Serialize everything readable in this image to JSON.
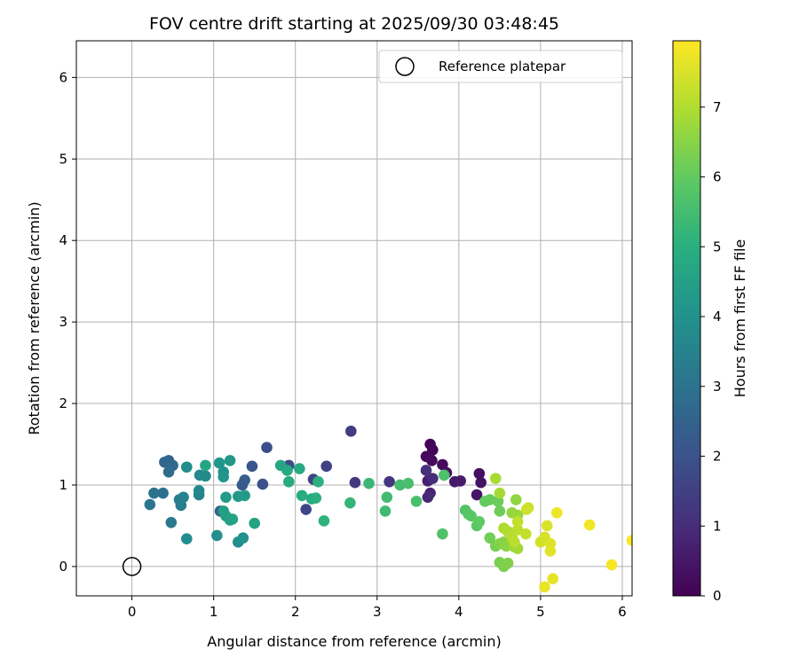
{
  "chart_data": {
    "type": "scatter",
    "title": "FOV centre drift starting at 2025/09/30 03:48:45",
    "xlabel": "Angular distance from reference (arcmin)",
    "ylabel": "Rotation from reference (arcmin)",
    "xlim": [
      -0.68,
      6.12
    ],
    "ylim": [
      -0.36,
      6.45
    ],
    "xticks": [
      0,
      1,
      2,
      3,
      4,
      5,
      6
    ],
    "yticks": [
      0,
      1,
      2,
      3,
      4,
      5,
      6
    ],
    "grid": true,
    "legend": {
      "position": "top-right",
      "entries": [
        "Reference platepar"
      ]
    },
    "reference_point": {
      "x": 0,
      "y": 0,
      "label": "Reference platepar"
    },
    "colorbar": {
      "label": "Hours from first FF file",
      "min": 0,
      "max": 7.95,
      "ticks": [
        0,
        1,
        2,
        3,
        4,
        5,
        6,
        7
      ],
      "colormap": "viridis"
    },
    "points": [
      {
        "x": 3.65,
        "y": 1.5,
        "c": 0.05
      },
      {
        "x": 3.68,
        "y": 1.43,
        "c": 0.1
      },
      {
        "x": 3.6,
        "y": 1.35,
        "c": 0.15
      },
      {
        "x": 3.67,
        "y": 1.3,
        "c": 0.2
      },
      {
        "x": 3.8,
        "y": 1.25,
        "c": 0.25
      },
      {
        "x": 3.85,
        "y": 1.15,
        "c": 0.3
      },
      {
        "x": 4.25,
        "y": 1.14,
        "c": 0.35
      },
      {
        "x": 4.27,
        "y": 1.03,
        "c": 0.4
      },
      {
        "x": 4.22,
        "y": 0.88,
        "c": 0.45
      },
      {
        "x": 3.95,
        "y": 1.04,
        "c": 0.55
      },
      {
        "x": 4.02,
        "y": 1.05,
        "c": 0.6
      },
      {
        "x": 3.62,
        "y": 1.05,
        "c": 0.7
      },
      {
        "x": 3.65,
        "y": 0.9,
        "c": 0.8
      },
      {
        "x": 3.62,
        "y": 0.85,
        "c": 0.9
      },
      {
        "x": 3.68,
        "y": 1.08,
        "c": 1.0
      },
      {
        "x": 3.6,
        "y": 1.18,
        "c": 1.1
      },
      {
        "x": 3.15,
        "y": 1.04,
        "c": 1.2
      },
      {
        "x": 2.73,
        "y": 1.03,
        "c": 1.3
      },
      {
        "x": 2.68,
        "y": 1.66,
        "c": 1.4
      },
      {
        "x": 2.38,
        "y": 1.23,
        "c": 1.5
      },
      {
        "x": 2.22,
        "y": 1.07,
        "c": 1.6
      },
      {
        "x": 2.13,
        "y": 0.7,
        "c": 1.7
      },
      {
        "x": 1.92,
        "y": 1.24,
        "c": 1.8
      },
      {
        "x": 1.65,
        "y": 1.46,
        "c": 1.9
      },
      {
        "x": 1.6,
        "y": 1.01,
        "c": 2.0
      },
      {
        "x": 1.47,
        "y": 1.23,
        "c": 2.1
      },
      {
        "x": 1.35,
        "y": 1.0,
        "c": 2.2
      },
      {
        "x": 1.38,
        "y": 1.06,
        "c": 2.3
      },
      {
        "x": 1.08,
        "y": 0.68,
        "c": 2.4
      },
      {
        "x": 0.45,
        "y": 1.3,
        "c": 2.5
      },
      {
        "x": 0.4,
        "y": 1.28,
        "c": 2.6
      },
      {
        "x": 0.5,
        "y": 1.24,
        "c": 2.7
      },
      {
        "x": 0.45,
        "y": 1.16,
        "c": 2.8
      },
      {
        "x": 0.38,
        "y": 0.9,
        "c": 2.9
      },
      {
        "x": 0.27,
        "y": 0.9,
        "c": 3.0
      },
      {
        "x": 0.22,
        "y": 0.76,
        "c": 3.1
      },
      {
        "x": 0.48,
        "y": 0.54,
        "c": 3.2
      },
      {
        "x": 0.6,
        "y": 0.75,
        "c": 3.3
      },
      {
        "x": 0.58,
        "y": 0.82,
        "c": 3.4
      },
      {
        "x": 0.63,
        "y": 0.85,
        "c": 3.5
      },
      {
        "x": 0.82,
        "y": 0.88,
        "c": 3.6
      },
      {
        "x": 0.82,
        "y": 0.93,
        "c": 3.65
      },
      {
        "x": 0.83,
        "y": 1.12,
        "c": 3.7
      },
      {
        "x": 0.9,
        "y": 1.11,
        "c": 3.75
      },
      {
        "x": 0.67,
        "y": 1.22,
        "c": 3.8
      },
      {
        "x": 0.67,
        "y": 0.34,
        "c": 3.85
      },
      {
        "x": 1.04,
        "y": 0.38,
        "c": 3.9
      },
      {
        "x": 1.3,
        "y": 0.3,
        "c": 3.95
      },
      {
        "x": 1.36,
        "y": 0.35,
        "c": 4.0
      },
      {
        "x": 1.12,
        "y": 1.16,
        "c": 4.05
      },
      {
        "x": 1.12,
        "y": 1.1,
        "c": 4.1
      },
      {
        "x": 1.07,
        "y": 1.27,
        "c": 4.15
      },
      {
        "x": 1.2,
        "y": 1.3,
        "c": 4.2
      },
      {
        "x": 1.3,
        "y": 0.86,
        "c": 4.25
      },
      {
        "x": 1.38,
        "y": 0.87,
        "c": 4.3
      },
      {
        "x": 1.15,
        "y": 0.85,
        "c": 4.35
      },
      {
        "x": 1.12,
        "y": 0.68,
        "c": 4.4
      },
      {
        "x": 1.15,
        "y": 0.62,
        "c": 4.45
      },
      {
        "x": 1.2,
        "y": 0.57,
        "c": 4.5
      },
      {
        "x": 1.23,
        "y": 0.58,
        "c": 4.55
      },
      {
        "x": 1.5,
        "y": 0.53,
        "c": 4.6
      },
      {
        "x": 0.9,
        "y": 1.24,
        "c": 4.65
      },
      {
        "x": 1.82,
        "y": 1.24,
        "c": 4.7
      },
      {
        "x": 1.9,
        "y": 1.18,
        "c": 4.75
      },
      {
        "x": 2.05,
        "y": 1.2,
        "c": 4.8
      },
      {
        "x": 1.92,
        "y": 1.04,
        "c": 4.85
      },
      {
        "x": 2.08,
        "y": 0.87,
        "c": 4.9
      },
      {
        "x": 2.2,
        "y": 0.83,
        "c": 4.95
      },
      {
        "x": 2.25,
        "y": 0.84,
        "c": 5.0
      },
      {
        "x": 2.28,
        "y": 1.04,
        "c": 5.05
      },
      {
        "x": 2.35,
        "y": 0.56,
        "c": 5.1
      },
      {
        "x": 2.67,
        "y": 0.78,
        "c": 5.2
      },
      {
        "x": 2.9,
        "y": 1.02,
        "c": 5.3
      },
      {
        "x": 3.1,
        "y": 0.68,
        "c": 5.4
      },
      {
        "x": 3.12,
        "y": 0.85,
        "c": 5.45
      },
      {
        "x": 3.28,
        "y": 1.0,
        "c": 5.5
      },
      {
        "x": 3.38,
        "y": 1.02,
        "c": 5.55
      },
      {
        "x": 3.48,
        "y": 0.8,
        "c": 5.6
      },
      {
        "x": 3.82,
        "y": 1.12,
        "c": 5.65
      },
      {
        "x": 3.8,
        "y": 0.4,
        "c": 5.7
      },
      {
        "x": 4.08,
        "y": 0.69,
        "c": 5.75
      },
      {
        "x": 4.12,
        "y": 0.64,
        "c": 5.8
      },
      {
        "x": 4.15,
        "y": 0.62,
        "c": 5.85
      },
      {
        "x": 4.22,
        "y": 0.5,
        "c": 5.9
      },
      {
        "x": 4.25,
        "y": 0.55,
        "c": 5.95
      },
      {
        "x": 4.32,
        "y": 0.8,
        "c": 6.0
      },
      {
        "x": 4.38,
        "y": 0.82,
        "c": 6.05
      },
      {
        "x": 4.48,
        "y": 0.8,
        "c": 6.1
      },
      {
        "x": 4.5,
        "y": 0.68,
        "c": 6.15
      },
      {
        "x": 4.38,
        "y": 0.35,
        "c": 6.2
      },
      {
        "x": 4.45,
        "y": 0.25,
        "c": 6.25
      },
      {
        "x": 4.5,
        "y": 0.05,
        "c": 6.3
      },
      {
        "x": 4.55,
        "y": 0.0,
        "c": 6.35
      },
      {
        "x": 4.6,
        "y": 0.04,
        "c": 6.4
      },
      {
        "x": 4.5,
        "y": 0.28,
        "c": 6.45
      },
      {
        "x": 4.55,
        "y": 0.3,
        "c": 6.5
      },
      {
        "x": 4.58,
        "y": 0.25,
        "c": 6.55
      },
      {
        "x": 4.7,
        "y": 0.82,
        "c": 6.6
      },
      {
        "x": 4.65,
        "y": 0.66,
        "c": 6.65
      },
      {
        "x": 4.72,
        "y": 0.63,
        "c": 6.7
      },
      {
        "x": 4.68,
        "y": 0.24,
        "c": 6.75
      },
      {
        "x": 4.72,
        "y": 0.22,
        "c": 6.8
      },
      {
        "x": 4.5,
        "y": 0.9,
        "c": 6.85
      },
      {
        "x": 4.45,
        "y": 1.08,
        "c": 6.9
      },
      {
        "x": 4.55,
        "y": 0.47,
        "c": 6.95
      },
      {
        "x": 4.6,
        "y": 0.43,
        "c": 7.0
      },
      {
        "x": 4.65,
        "y": 0.36,
        "c": 7.05
      },
      {
        "x": 4.68,
        "y": 0.3,
        "c": 7.1
      },
      {
        "x": 4.72,
        "y": 0.45,
        "c": 7.15
      },
      {
        "x": 4.72,
        "y": 0.55,
        "c": 7.2
      },
      {
        "x": 4.82,
        "y": 0.4,
        "c": 7.25
      },
      {
        "x": 4.85,
        "y": 0.72,
        "c": 7.3
      },
      {
        "x": 4.83,
        "y": 0.7,
        "c": 7.35
      },
      {
        "x": 5.0,
        "y": 0.3,
        "c": 7.4
      },
      {
        "x": 5.05,
        "y": 0.36,
        "c": 7.45
      },
      {
        "x": 5.08,
        "y": 0.5,
        "c": 7.5
      },
      {
        "x": 5.12,
        "y": 0.28,
        "c": 7.55
      },
      {
        "x": 5.12,
        "y": 0.19,
        "c": 7.6
      },
      {
        "x": 5.15,
        "y": -0.15,
        "c": 7.65
      },
      {
        "x": 5.05,
        "y": -0.25,
        "c": 7.7
      },
      {
        "x": 5.2,
        "y": 0.66,
        "c": 7.75
      },
      {
        "x": 5.6,
        "y": 0.51,
        "c": 7.8
      },
      {
        "x": 5.87,
        "y": 0.02,
        "c": 7.85
      },
      {
        "x": 6.12,
        "y": 0.32,
        "c": 7.9
      }
    ]
  }
}
